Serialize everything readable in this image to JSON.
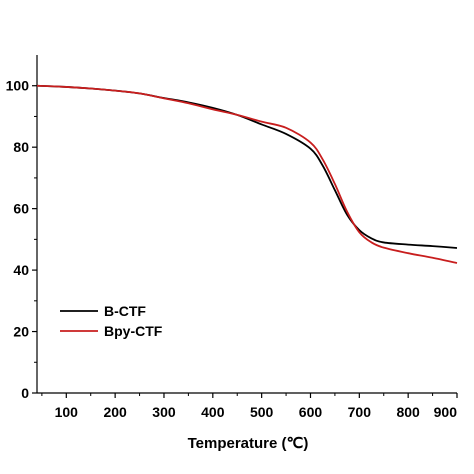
{
  "chart_data": {
    "type": "line",
    "title": "",
    "xlabel": "Temperature (℃)",
    "ylabel": "",
    "xlim": [
      40,
      900
    ],
    "ylim": [
      0,
      110
    ],
    "x_ticks": [
      100,
      200,
      300,
      400,
      500,
      600,
      700,
      800,
      900
    ],
    "y_ticks": [
      0,
      20,
      40,
      60,
      80,
      100
    ],
    "grid": false,
    "legend_position": "bottom-left",
    "series": [
      {
        "name": "B-CTF",
        "color": "#000000",
        "x": [
          40,
          100,
          150,
          200,
          250,
          300,
          350,
          400,
          450,
          500,
          550,
          600,
          625,
          650,
          675,
          700,
          725,
          750,
          800,
          850,
          900
        ],
        "values": [
          100,
          99.6,
          99.1,
          98.4,
          97.5,
          96.0,
          94.6,
          92.8,
          90.5,
          87.4,
          84.3,
          79.5,
          74.0,
          66.0,
          58.0,
          53.0,
          50.3,
          49.0,
          48.3,
          47.8,
          47.2
        ]
      },
      {
        "name": "Bpy-CTF",
        "color": "#c81e1e",
        "x": [
          40,
          100,
          150,
          200,
          250,
          300,
          350,
          400,
          450,
          500,
          550,
          600,
          625,
          650,
          675,
          700,
          725,
          750,
          800,
          850,
          900
        ],
        "values": [
          100,
          99.6,
          99.1,
          98.4,
          97.5,
          95.9,
          94.3,
          92.3,
          90.5,
          88.3,
          86.3,
          81.5,
          76.0,
          68.0,
          59.0,
          52.3,
          49.0,
          47.3,
          45.5,
          44.0,
          42.3
        ]
      }
    ]
  }
}
